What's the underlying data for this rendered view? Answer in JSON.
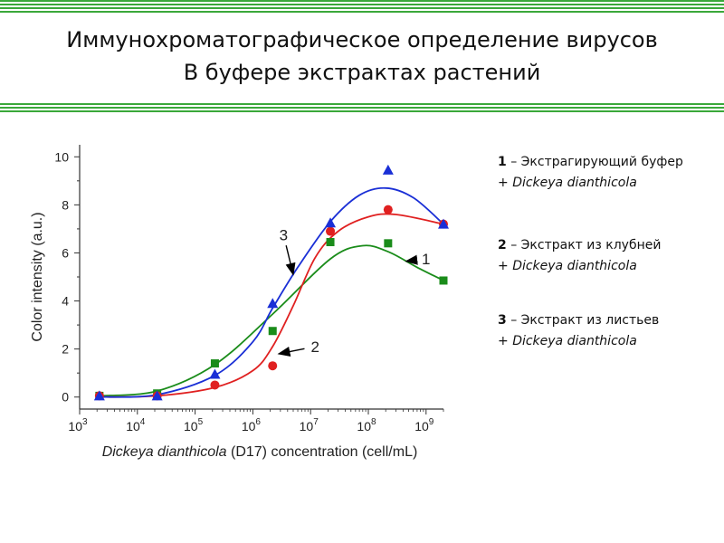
{
  "header": {
    "title_line1": "Иммунохроматографическое определение вирусов",
    "title_line2": "В буфере экстрактах растений",
    "stripe_color": "#3aa83a"
  },
  "legend": [
    {
      "number": "1",
      "label": "– Экстрагирующий буфер",
      "plus": "+",
      "species": "Dickeya dianthicola"
    },
    {
      "number": "2",
      "label": "– Экстракт из клубней",
      "plus": "+",
      "species": "Dickeya dianthicola"
    },
    {
      "number": "3",
      "label": "– Экстракт из листьев",
      "plus": "+",
      "species": "Dickeya dianthicola"
    }
  ],
  "chart_data": {
    "type": "scatter",
    "xscale": "log",
    "xlim": [
      1000,
      2000000000
    ],
    "ylim": [
      -0.5,
      10.5
    ],
    "x_ticks": [
      {
        "value": 1000,
        "base": "10",
        "exp": "3"
      },
      {
        "value": 10000,
        "base": "10",
        "exp": "4"
      },
      {
        "value": 100000,
        "base": "10",
        "exp": "5"
      },
      {
        "value": 1000000,
        "base": "10",
        "exp": "6"
      },
      {
        "value": 10000000,
        "base": "10",
        "exp": "7"
      },
      {
        "value": 100000000,
        "base": "10",
        "exp": "8"
      },
      {
        "value": 1000000000,
        "base": "10",
        "exp": "9"
      }
    ],
    "y_ticks": [
      "0",
      "2",
      "4",
      "6",
      "8",
      "10"
    ],
    "xlabel_italic": "Dickeya dianthicola",
    "xlabel_rest": " (D17) concentration (cell/mL)",
    "ylabel": "Color intensity (a.u.)",
    "series": [
      {
        "name": "1",
        "color": "#1a8c1a",
        "marker": "square",
        "points": [
          [
            2200,
            0.05
          ],
          [
            22000,
            0.15
          ],
          [
            220000,
            1.4
          ],
          [
            2200000,
            2.75
          ],
          [
            22000000,
            6.45
          ],
          [
            220000000,
            6.4
          ],
          [
            2000000000,
            4.85
          ]
        ],
        "fit": [
          [
            2200,
            0.05
          ],
          [
            22000,
            0.25
          ],
          [
            220000,
            1.35
          ],
          [
            2200000,
            3.45
          ],
          [
            22000000,
            5.75
          ],
          [
            80000000,
            6.3
          ],
          [
            220000000,
            6.05
          ],
          [
            700000000,
            5.4
          ],
          [
            2000000000,
            4.85
          ]
        ]
      },
      {
        "name": "2",
        "color": "#e02020",
        "marker": "circle",
        "points": [
          [
            2200,
            0.05
          ],
          [
            22000,
            0.05
          ],
          [
            220000,
            0.5
          ],
          [
            2200000,
            1.3
          ],
          [
            22000000,
            6.9
          ],
          [
            220000000,
            7.8
          ],
          [
            2000000000,
            7.2
          ]
        ],
        "fit": [
          [
            2200,
            0.0
          ],
          [
            22000,
            0.05
          ],
          [
            220000,
            0.4
          ],
          [
            1000000,
            1.1
          ],
          [
            2200000,
            2.1
          ],
          [
            5000000,
            3.8
          ],
          [
            12000000,
            5.8
          ],
          [
            30000000,
            6.9
          ],
          [
            100000000,
            7.5
          ],
          [
            300000000,
            7.6
          ],
          [
            2000000000,
            7.2
          ]
        ]
      },
      {
        "name": "3",
        "color": "#1a2fd6",
        "marker": "triangle",
        "points": [
          [
            2200,
            0.05
          ],
          [
            22000,
            0.05
          ],
          [
            220000,
            0.95
          ],
          [
            2200000,
            3.9
          ],
          [
            22000000,
            7.25
          ],
          [
            220000000,
            9.45
          ],
          [
            2000000000,
            7.2
          ]
        ],
        "fit": [
          [
            2200,
            0.0
          ],
          [
            22000,
            0.1
          ],
          [
            220000,
            0.9
          ],
          [
            1000000,
            2.3
          ],
          [
            2200000,
            3.7
          ],
          [
            6000000,
            5.4
          ],
          [
            22000000,
            7.3
          ],
          [
            70000000,
            8.4
          ],
          [
            200000000,
            8.7
          ],
          [
            600000000,
            8.3
          ],
          [
            2000000000,
            7.2
          ]
        ]
      }
    ],
    "annotations": [
      {
        "text": "3",
        "series": "3",
        "label_x": 3400000,
        "label_y": 6.75,
        "target_x": 5000000,
        "target_y": 5.1
      },
      {
        "text": "2",
        "series": "2",
        "label_x": 12000000,
        "label_y": 2.1,
        "target_x": 2800000,
        "target_y": 1.8
      },
      {
        "text": "1",
        "series": "1",
        "label_x": 1000000000,
        "label_y": 5.75,
        "target_x": 450000000,
        "target_y": 5.65
      }
    ]
  }
}
